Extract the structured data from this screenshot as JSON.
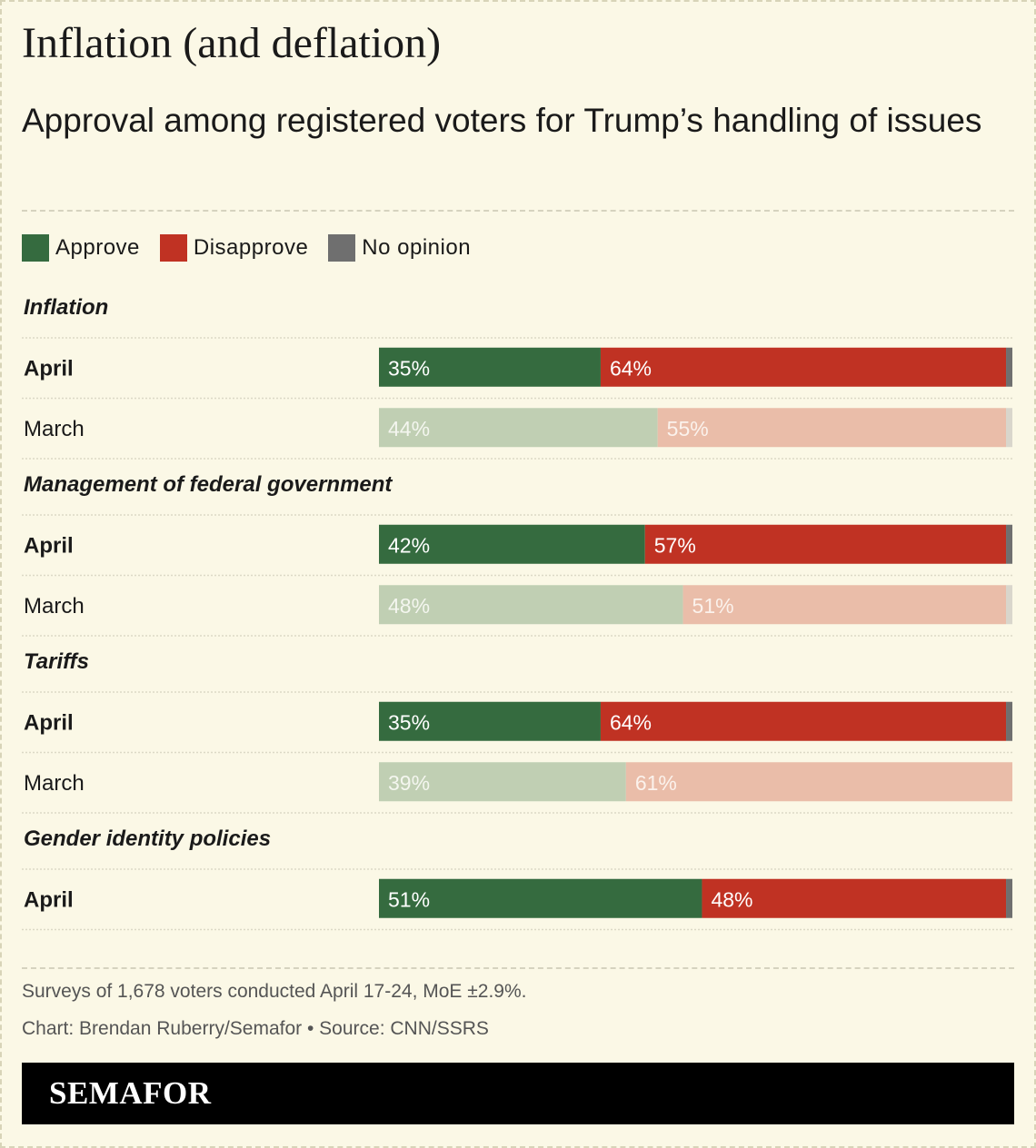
{
  "title": "Inflation (and deflation)",
  "subtitle": "Approval among registered voters for Trump’s handling of issues",
  "colors": {
    "approve": "#356b3f",
    "disapprove": "#c03223",
    "no_opinion": "#6f6f6f",
    "approve_light": "#c0cfb3",
    "disapprove_light": "#eabda9",
    "no_opinion_light": "#d9d6cc",
    "background": "#fbf8e6"
  },
  "legend": [
    {
      "label": "Approve",
      "color": "#356b3f"
    },
    {
      "label": "Disapprove",
      "color": "#c03223"
    },
    {
      "label": "No opinion",
      "color": "#6f6f6f"
    }
  ],
  "chart_data": {
    "type": "bar",
    "orientation": "horizontal",
    "stacked": true,
    "xlim": [
      0,
      100
    ],
    "series_names": [
      "Approve",
      "Disapprove",
      "No opinion"
    ],
    "groups": [
      {
        "label": "Inflation",
        "rows": [
          {
            "label": "April",
            "approve": 35,
            "disapprove": 64,
            "no_opinion": 1,
            "current": true
          },
          {
            "label": "March",
            "approve": 44,
            "disapprove": 55,
            "no_opinion": 1,
            "current": false
          }
        ]
      },
      {
        "label": "Management of federal government",
        "rows": [
          {
            "label": "April",
            "approve": 42,
            "disapprove": 57,
            "no_opinion": 1,
            "current": true
          },
          {
            "label": "March",
            "approve": 48,
            "disapprove": 51,
            "no_opinion": 1,
            "current": false
          }
        ]
      },
      {
        "label": "Tariffs",
        "rows": [
          {
            "label": "April",
            "approve": 35,
            "disapprove": 64,
            "no_opinion": 1,
            "current": true
          },
          {
            "label": "March",
            "approve": 39,
            "disapprove": 61,
            "no_opinion": 0,
            "current": false
          }
        ]
      },
      {
        "label": "Gender identity policies",
        "rows": [
          {
            "label": "April",
            "approve": 51,
            "disapprove": 48,
            "no_opinion": 1,
            "current": true
          }
        ]
      }
    ]
  },
  "footer": {
    "note": "Surveys of 1,678 voters conducted April 17-24, MoE ±2.9%.",
    "credit": "Chart: Brendan Ruberry/Semafor • Source: CNN/SSRS"
  },
  "brand": "SEMAFOR"
}
